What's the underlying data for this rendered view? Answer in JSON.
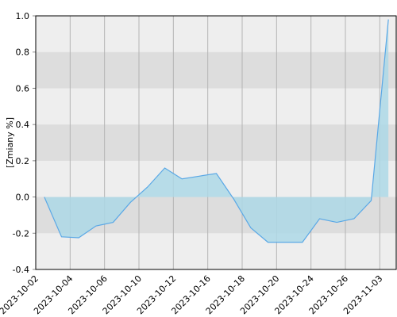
{
  "chart_data": {
    "type": "area",
    "y_label": "[Zmiany %]",
    "categories": [
      "2023-10-02",
      null,
      "2023-10-04",
      null,
      "2023-10-06",
      null,
      "2023-10-10",
      null,
      "2023-10-12",
      null,
      "2023-10-16",
      null,
      "2023-10-18",
      null,
      "2023-10-20",
      null,
      "2023-10-24",
      null,
      "2023-10-26",
      null,
      "2023-11-03"
    ],
    "values": [
      0.0,
      -0.22,
      -0.225,
      -0.16,
      -0.14,
      -0.03,
      0.055,
      0.16,
      0.1,
      0.115,
      0.13,
      -0.01,
      -0.17,
      -0.25,
      -0.25,
      -0.25,
      -0.12,
      -0.14,
      -0.12,
      -0.02,
      0.98
    ],
    "color": "#5aa8e6",
    "fill": "#add8e6",
    "ylim": [
      -0.4,
      1.0
    ],
    "yticks": [
      -0.4,
      -0.2,
      {
        "value": 0.0,
        "label": "0.0"
      },
      0.2,
      0.4,
      0.6,
      0.8,
      {
        "value": 1.0,
        "label": "1.0"
      }
    ],
    "grid": true
  }
}
